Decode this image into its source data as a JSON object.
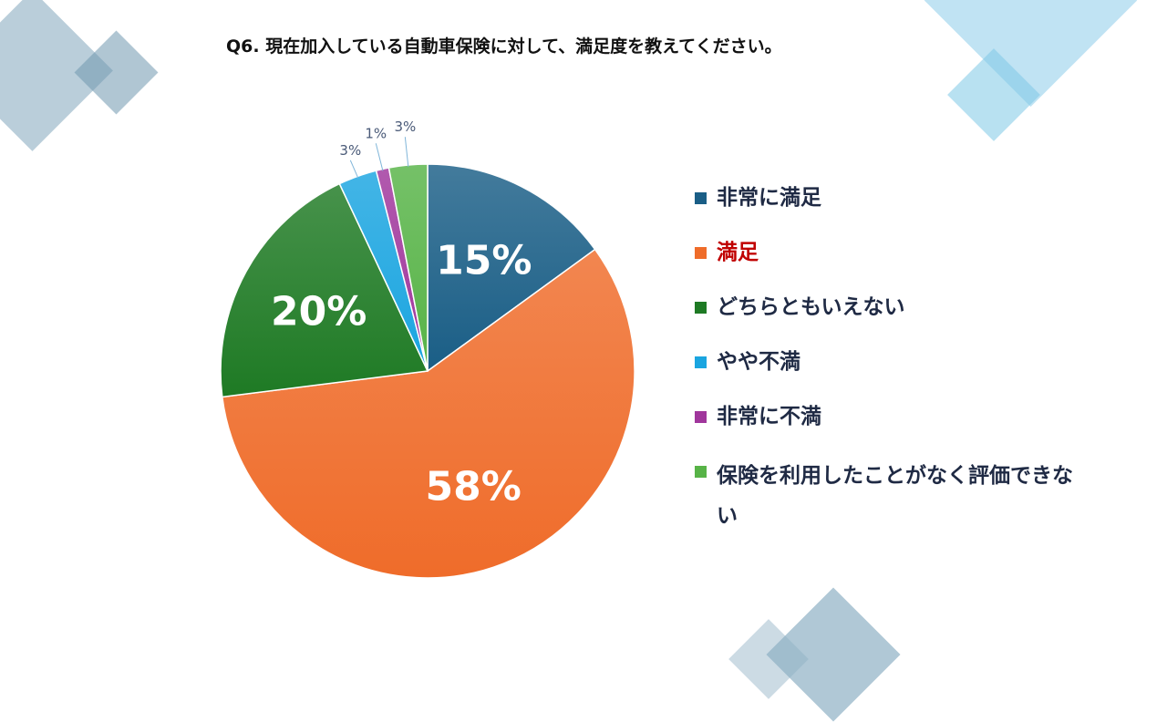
{
  "slide": {
    "title": "Q6. 現在加入している自動車保険に対して、満足度を教えてください。"
  },
  "colors": {
    "deco_grey": "#8fb0c4",
    "deco_light": "#bde2f2",
    "deco_mid": "#7ec8e6",
    "legend_text": "#1f2a44",
    "legend_highlight": "#c00000"
  },
  "chart_data": {
    "type": "pie",
    "title": "",
    "slices": [
      {
        "label": "非常に満足",
        "value": 15,
        "value_label": "15%",
        "color": "#1a5e86",
        "label_style": "inside"
      },
      {
        "label": "満足",
        "value": 58,
        "value_label": "58%",
        "color": "#ef6c2a",
        "label_style": "inside",
        "highlight": true
      },
      {
        "label": "どちらともいえない",
        "value": 20,
        "value_label": "20%",
        "color": "#1e7a24",
        "label_style": "inside"
      },
      {
        "label": "やや不満",
        "value": 3,
        "value_label": "3%",
        "color": "#1aa5e0",
        "label_style": "outside"
      },
      {
        "label": "非常に不満",
        "value": 1,
        "value_label": "1%",
        "color": "#a0369c",
        "label_style": "outside"
      },
      {
        "label": "保険を利用したことがなく評価できない",
        "value": 3,
        "value_label": "3%",
        "color": "#57b347",
        "label_style": "outside"
      }
    ],
    "legend_position": "right"
  }
}
